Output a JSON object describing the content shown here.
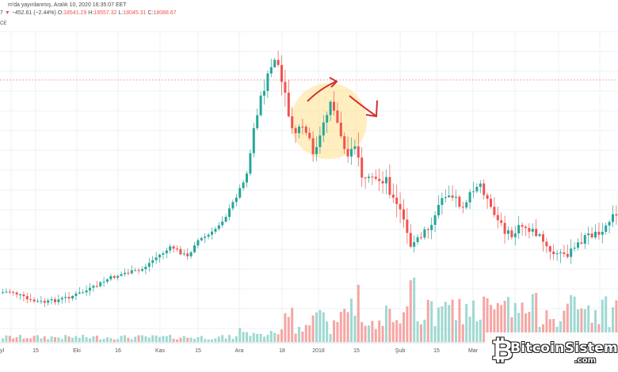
{
  "header": {
    "title_text": "m'da yayınlanmış, Aralık 10, 2020 16:35:07 EET",
    "ohlc_prefix": "7",
    "change_arrow": "▼",
    "change": "−452.61 (−2.44%)",
    "open_label": "O:",
    "open": "18541.29",
    "high_label": "H:",
    "high": "18557.32",
    "low_label": "L:",
    "low": "18045.31",
    "close_label": "C:",
    "close": "18088.67",
    "volume_text": "CE"
  },
  "colors": {
    "up": "#26a69a",
    "down": "#ef5350",
    "up_volume": "#9fd9d2",
    "down_volume": "#f5a6a4",
    "grid": "#eef0f3",
    "arrow": "#d32f2f",
    "highlight": "#ffe08a"
  },
  "chart_data": {
    "type": "candlestick",
    "x_tick_labels": [
      "yl",
      "15",
      "Eki",
      "16",
      "Kas",
      "15",
      "Ara",
      "18",
      "2018",
      "15",
      "Şub",
      "15",
      "Mar"
    ],
    "price_trend": [
      4500,
      4200,
      4700,
      4400,
      5700,
      6300,
      7000,
      7200,
      8000,
      10500,
      12000,
      19000,
      16000,
      14000,
      13500,
      14500,
      17000,
      11000,
      10000,
      8000,
      7000,
      9000,
      10500,
      11000,
      8500,
      7500,
      8000,
      9200
    ],
    "annotations": [
      {
        "type": "highlight-circle",
        "description": "circle around early January 2018 peak region"
      },
      {
        "type": "arrow-up",
        "color": "red"
      },
      {
        "type": "arrow-down",
        "color": "red"
      },
      {
        "type": "dashed-line",
        "description": "horizontal dotted red line at recent price level"
      }
    ]
  },
  "watermark": {
    "logo_glyph": "₿",
    "name": "BitcoinSistemi",
    "domain": ".com"
  }
}
